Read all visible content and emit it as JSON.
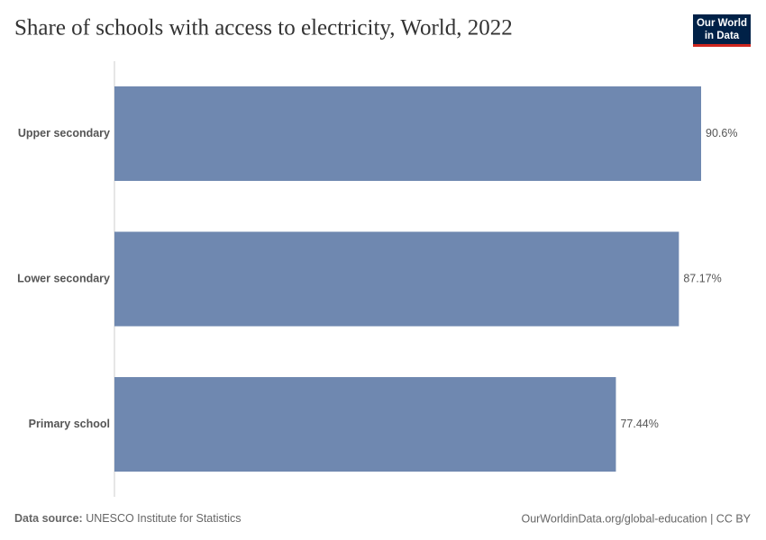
{
  "chart_data": {
    "type": "bar",
    "orientation": "horizontal",
    "title": "Share of schools with access to electricity, World, 2022",
    "categories": [
      "Upper secondary",
      "Lower secondary",
      "Primary school"
    ],
    "values": [
      90.6,
      87.17,
      77.44
    ],
    "value_labels": [
      "90.6%",
      "87.17%",
      "77.44%"
    ],
    "color": "#6f88b0"
  },
  "logo": [
    "Our World",
    "in Data"
  ],
  "footer": {
    "source_label": "Data source:",
    "source": "UNESCO Institute for Statistics",
    "url": "OurWorldinData.org/global-education | CC BY"
  }
}
